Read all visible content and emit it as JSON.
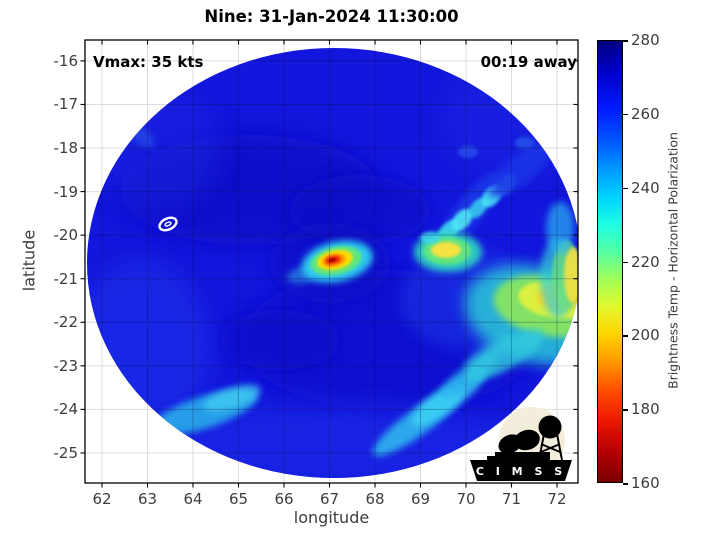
{
  "title": "Nine: 31-Jan-2024 11:30:00",
  "annotations": {
    "vmax": "Vmax: 35 kts",
    "time_away": "00:19 away"
  },
  "axes": {
    "xlabel": "longitude",
    "ylabel": "latitude",
    "x_ticks": [
      62,
      63,
      64,
      65,
      66,
      67,
      68,
      69,
      70,
      71,
      72
    ],
    "y_ticks": [
      -16,
      -17,
      -18,
      -19,
      -20,
      -21,
      -22,
      -23,
      -24,
      -25
    ]
  },
  "colorbar": {
    "label": "Brightness Temp - Horizontal Polarization",
    "ticks": [
      280,
      260,
      240,
      220,
      200,
      180,
      160
    ],
    "range": [
      160,
      280
    ],
    "gradient": [
      [
        "0%",
        "#000080"
      ],
      [
        "7%",
        "#0000c8"
      ],
      [
        "15%",
        "#0018ff"
      ],
      [
        "22%",
        "#0050ff"
      ],
      [
        "30%",
        "#00a0ff"
      ],
      [
        "36%",
        "#00d8ff"
      ],
      [
        "42%",
        "#20ffe0"
      ],
      [
        "48%",
        "#58ffa0"
      ],
      [
        "54%",
        "#a0ff58"
      ],
      [
        "60%",
        "#e0f830"
      ],
      [
        "66%",
        "#ffd800"
      ],
      [
        "72%",
        "#ffa000"
      ],
      [
        "79%",
        "#ff5000"
      ],
      [
        "86%",
        "#f01800"
      ],
      [
        "93%",
        "#b40000"
      ],
      [
        "100%",
        "#7c0000"
      ]
    ]
  },
  "logo": {
    "text": "C I M S S"
  },
  "colors": {
    "swath_base_blue": "#1316dc",
    "grid_gray": "#dcdcdc",
    "core_red": "#e81600",
    "core_yellow": "#ffe000"
  },
  "chart_data": {
    "type": "heatmap",
    "title": "Nine: 31-Jan-2024 11:30:00",
    "xlabel": "longitude",
    "ylabel": "latitude",
    "x_range": [
      61.626,
      72.462
    ],
    "y_range": [
      -25.69,
      -15.52
    ],
    "x_ticks": [
      62,
      63,
      64,
      65,
      66,
      67,
      68,
      69,
      70,
      71,
      72
    ],
    "y_ticks": [
      -16,
      -17,
      -18,
      -19,
      -20,
      -21,
      -22,
      -23,
      -24,
      -25
    ],
    "grid": true,
    "colorbar_label": "Brightness Temp - Horizontal Polarization",
    "colorbar_ticks": [
      160,
      180,
      200,
      220,
      240,
      260,
      280
    ],
    "value_units": "K",
    "swath": {
      "shape": "circular",
      "center_lon": 67.1,
      "center_lat": -20.6,
      "radius_deg": 5.4,
      "background_brightness_temp_k": [
        252,
        266
      ]
    },
    "features": [
      {
        "name": "storm-core-cold-convection",
        "lon": 67.1,
        "lat": -20.55,
        "min_tb_k": 168
      },
      {
        "name": "white-center-marker-contour",
        "lon": 63.45,
        "lat": -19.75
      },
      {
        "name": "inner-rainband-cell-yellow",
        "lon": 69.0,
        "lat": -20.65,
        "tb_k": 205
      },
      {
        "name": "rainband-cyan-cell-chain",
        "lon": 69.6,
        "lat": -19.9,
        "tb_k": 230
      },
      {
        "name": "east-edge-rainband-patch",
        "lon": 71.8,
        "lat": -21.9,
        "tb_k": 200
      },
      {
        "name": "east-edge-orange-cell",
        "lon": 72.3,
        "lat": -21.7,
        "tb_k": 185
      },
      {
        "name": "southwest-cyan-patch",
        "lon": 64.3,
        "lat": -24.45,
        "tb_k": 238
      },
      {
        "name": "southeast-diagonal-band",
        "lon": 69.6,
        "lat": -24.2,
        "tb_k": 238
      }
    ]
  }
}
